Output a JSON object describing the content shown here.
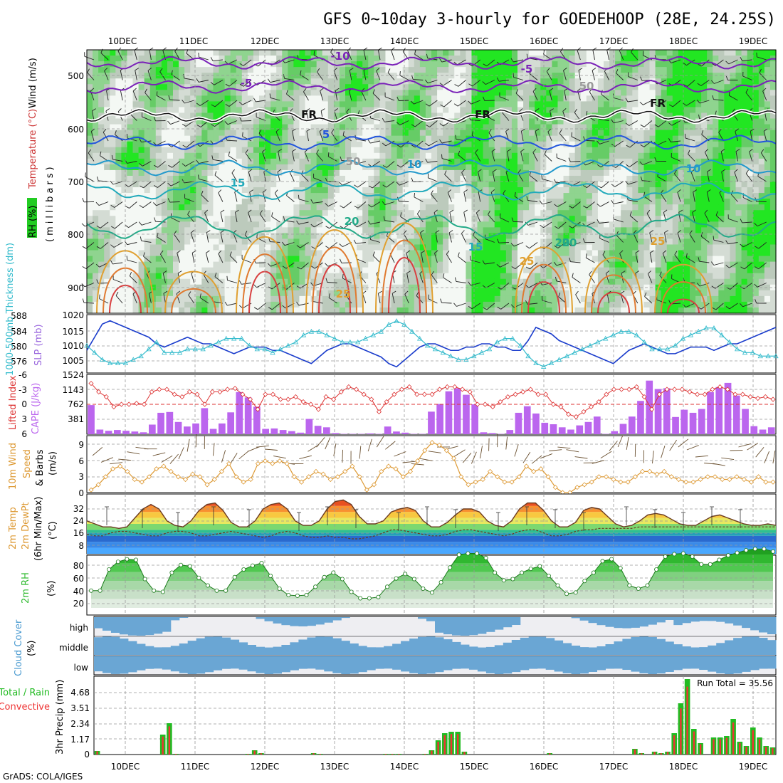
{
  "title": "GFS 0~10day 3-hourly for GOEDEHOOP (28E, 24.25S)",
  "footer": "GrADS: COLA/IGES",
  "dates": [
    "10DEC",
    "11DEC",
    "12DEC",
    "13DEC",
    "14DEC",
    "15DEC",
    "16DEC",
    "17DEC",
    "18DEC",
    "19DEC"
  ],
  "colors": {
    "precip_total": "#22bb22",
    "precip_conv": "#ee3333",
    "cape": "#bb66ee",
    "lifted": "#dd3333",
    "slp": "#1a3ccc",
    "thick": "#33bbcc",
    "wind": "#dd9933",
    "rh": "#33bb33",
    "cloud": "#6aa6d4"
  },
  "panels": {
    "upper": {
      "ylabel_rh": "RH (%)",
      "ylabel_temp": "Temperature (°C)",
      "ylabel_wind": "Wind (m/s)",
      "ylabel_units": "(millibars)",
      "levels": [
        "500",
        "600",
        "700",
        "800",
        "900"
      ],
      "contour_labels": [
        "-10",
        "-5",
        "-5",
        "FR",
        "FR",
        "FR",
        "5",
        "10",
        "10",
        "15",
        "15",
        "20",
        "20",
        "20",
        "25",
        "25",
        "25",
        "50",
        "50"
      ]
    },
    "slp_thick": {
      "ylabel_left": "1000-500mb Thickness (dm)",
      "ylabel_right": "SLP (mb)",
      "left_ticks": [
        "588",
        "584",
        "580",
        "576"
      ],
      "right_ticks": [
        "1020",
        "1015",
        "1010",
        "1005"
      ]
    },
    "cape_li": {
      "ylabel_left": "Lifted Index",
      "ylabel_right": "CAPE (J/kg)",
      "left_ticks": [
        "-6",
        "-3",
        "0",
        "3",
        "6"
      ],
      "right_ticks": [
        "1524",
        "1143",
        "762",
        "381"
      ]
    },
    "wind10": {
      "ylabel_1": "10m Wind",
      "ylabel_2": "Speed",
      "ylabel_3": "& Barbs",
      "ylabel_units": "(m/s)",
      "ticks": [
        "9",
        "6",
        "3",
        "0"
      ]
    },
    "temp2m": {
      "ylabel_1": "2m Temp",
      "ylabel_2": "2m DewPt",
      "ylabel_3": "(6hr Min/Max)",
      "ylabel_units": "(°C)",
      "ticks": [
        "32",
        "24",
        "16",
        "8"
      ]
    },
    "rh2m": {
      "ylabel": "2m RH",
      "ylabel_units": "(%)",
      "ticks": [
        "80",
        "60",
        "40",
        "20"
      ]
    },
    "cloud": {
      "ylabel": "Cloud Cover",
      "ylabel_units": "(%)",
      "rows": [
        "high",
        "middle",
        "low"
      ]
    },
    "precip": {
      "ylabel_1": "Total / Rain",
      "ylabel_2": "Convective",
      "ylabel_3": "3hr Precip (mm)",
      "ticks": [
        "4.68",
        "3.51",
        "2.34",
        "1.17",
        "0"
      ],
      "run_total_label": "Run Total = 35.56"
    }
  },
  "chart_data": [
    {
      "type": "line",
      "name": "SLP (mb)",
      "ylim": [
        1004,
        1020
      ],
      "values": [
        1010,
        1014,
        1018,
        1019,
        1018,
        1017,
        1016,
        1015,
        1014,
        1012,
        1011,
        1012,
        1013,
        1014,
        1013,
        1012,
        1012,
        1011,
        1010,
        1009,
        1010,
        1011,
        1011,
        1011,
        1010,
        1010,
        1009,
        1008,
        1007,
        1006,
        1008,
        1010,
        1011,
        1012,
        1012,
        1011,
        1010,
        1009,
        1008,
        1006,
        1005,
        1007,
        1009,
        1011,
        1012,
        1012,
        1011,
        1010,
        1010,
        1011,
        1011,
        1012,
        1012,
        1011,
        1011,
        1010,
        1010,
        1013,
        1017,
        1016,
        1015,
        1013,
        1012,
        1011,
        1010,
        1009,
        1008,
        1007,
        1006,
        1008,
        1010,
        1011,
        1012,
        1011,
        1010,
        1009,
        1009,
        1010,
        1011,
        1011,
        1011,
        1010,
        1011,
        1012,
        1012,
        1013,
        1014,
        1015,
        1016,
        1017
      ]
    },
    {
      "type": "line",
      "name": "1000-500mb Thickness (dm)",
      "ylim": [
        574,
        589
      ],
      "values": [
        581,
        579,
        577,
        576,
        576,
        576,
        577,
        578,
        580,
        582,
        579,
        579,
        579,
        580,
        580,
        580,
        581,
        582,
        583,
        583,
        583,
        581,
        580,
        580,
        579,
        580,
        581,
        582,
        584,
        585,
        585,
        584,
        583,
        582,
        582,
        582,
        583,
        584,
        585,
        587,
        588,
        587,
        585,
        583,
        581,
        580,
        579,
        578,
        577,
        577,
        578,
        579,
        580,
        582,
        583,
        583,
        581,
        578,
        576,
        575,
        576,
        577,
        578,
        579,
        580,
        581,
        582,
        583,
        584,
        585,
        585,
        584,
        582,
        580,
        580,
        580,
        581,
        583,
        584,
        585,
        586,
        586,
        584,
        582,
        580,
        579,
        579,
        578,
        578,
        578
      ]
    },
    {
      "type": "bar",
      "name": "CAPE (J/kg)",
      "ylim": [
        0,
        1524
      ],
      "values": [
        760,
        120,
        90,
        110,
        90,
        70,
        50,
        250,
        560,
        580,
        320,
        200,
        280,
        680,
        140,
        280,
        570,
        1100,
        960,
        720,
        140,
        150,
        110,
        80,
        40,
        400,
        220,
        180,
        30,
        10,
        10,
        10,
        20,
        10,
        200,
        70,
        40,
        10,
        10,
        590,
        790,
        1120,
        1200,
        1030,
        780,
        50,
        30,
        10,
        110,
        560,
        730,
        540,
        300,
        260,
        180,
        120,
        230,
        320,
        460,
        10,
        80,
        270,
        460,
        870,
        1400,
        1180,
        1200,
        450,
        640,
        560,
        660,
        1100,
        1230,
        1340,
        1010,
        660,
        210,
        120,
        180
      ]
    },
    {
      "type": "line",
      "name": "Lifted Index",
      "ylim": [
        -6,
        6
      ],
      "values": [
        -4.2,
        -2.5,
        -1.5,
        0.5,
        0,
        0,
        -0.2,
        0,
        -2.5,
        -3,
        -3,
        -2,
        -1.5,
        -2.5,
        -2,
        0,
        -2.5,
        -2.5,
        -3,
        -3.2,
        -2,
        -1,
        1,
        -2,
        -2,
        -1,
        -1,
        -1.5,
        -0.5,
        0,
        1,
        -1.5,
        -1,
        -2.5,
        -3.5,
        -3,
        -2,
        -1,
        1.5,
        -0.5,
        -2,
        -3,
        -3.5,
        -2,
        -2,
        -2,
        -3,
        -3.5,
        -3.5,
        -3,
        -2.5,
        0,
        0,
        0.5,
        -0.5,
        -1.5,
        -2,
        -2.5,
        -3,
        -2,
        -2,
        0,
        0.5,
        2,
        2.5,
        1.5,
        0.5,
        -0.5,
        -2,
        -3,
        -3,
        -3,
        -3.5,
        -1.5,
        1,
        -2,
        -3,
        -3,
        -3,
        -2.5,
        -2,
        -2,
        -3,
        -3.5,
        -3,
        -2,
        -2,
        -1.5,
        -1.2,
        -1.5,
        -1
      ]
    },
    {
      "type": "line",
      "name": "10m Wind Speed (m/s)",
      "ylim": [
        0,
        10
      ],
      "values": [
        0.5,
        1.5,
        3,
        4.5,
        5,
        4,
        2.5,
        2,
        3,
        4.5,
        5,
        4,
        3,
        2.5,
        3.5,
        3,
        1.5,
        2.5,
        4,
        5.5,
        3,
        2,
        2.5,
        5.5,
        6,
        5.5,
        6,
        5.5,
        3,
        2,
        3,
        4,
        3.5,
        2.5,
        3,
        4,
        5,
        3,
        0.5,
        1.5,
        4,
        5,
        4.5,
        3,
        4,
        6,
        8,
        9.5,
        9,
        8,
        6.5,
        3,
        1.5,
        2,
        2.5,
        4,
        3,
        2,
        2,
        3,
        5,
        4,
        4.5,
        3,
        1,
        0,
        0,
        1,
        1.5,
        2,
        3,
        3,
        2.5,
        2,
        2,
        3,
        4,
        4,
        3.5,
        4,
        3,
        2.5,
        2,
        2,
        2.5,
        3,
        3,
        2.5,
        2.5,
        3,
        2.5,
        2,
        3,
        2,
        2
      ]
    },
    {
      "type": "area",
      "name": "2m Temp (°C)",
      "ylim": [
        0,
        40
      ],
      "values": [
        22,
        20,
        18,
        18,
        17,
        18,
        24,
        30,
        33,
        30,
        22,
        19,
        18,
        22,
        29,
        33,
        34,
        29,
        21,
        18,
        18,
        22,
        30,
        33,
        34,
        30,
        22,
        19,
        19,
        22,
        30,
        35,
        36,
        33,
        25,
        20,
        20,
        22,
        28,
        30,
        31,
        29,
        22,
        18,
        18,
        21,
        26,
        30,
        30,
        28,
        22,
        19,
        18,
        22,
        30,
        34,
        34,
        29,
        22,
        18,
        18,
        21,
        29,
        31,
        30,
        25,
        20,
        18,
        19,
        22,
        26,
        27,
        26,
        23,
        20,
        19,
        19,
        22,
        25,
        26,
        24,
        22,
        20,
        19,
        19,
        20,
        19
      ]
    },
    {
      "type": "line",
      "name": "2m DewPt (°C)",
      "ylim": [
        0,
        40
      ],
      "values": [
        13,
        12,
        12,
        14,
        15,
        15,
        14,
        13,
        12,
        12,
        14,
        15,
        15,
        14,
        12,
        12,
        13,
        14,
        15,
        14,
        13,
        12,
        11,
        12,
        14,
        15,
        14,
        12,
        11,
        11,
        12,
        11,
        11,
        10,
        10,
        11,
        12,
        14,
        16,
        16,
        15,
        14,
        13,
        12,
        12,
        13,
        15,
        16,
        16,
        15,
        14,
        13,
        12,
        13,
        15,
        16,
        16,
        14,
        12,
        12,
        13,
        15,
        16,
        16,
        17,
        17,
        17,
        17,
        17,
        18,
        18,
        18,
        18,
        18,
        18,
        18,
        18,
        18,
        18,
        18,
        18,
        18,
        18,
        18,
        18,
        18,
        18
      ]
    },
    {
      "type": "area",
      "name": "2m RH (%)",
      "ylim": [
        0,
        100
      ],
      "values": [
        27,
        27,
        60,
        72,
        76,
        75,
        45,
        27,
        25,
        55,
        67,
        65,
        47,
        35,
        27,
        27,
        48,
        60,
        66,
        70,
        50,
        30,
        20,
        19,
        20,
        33,
        48,
        55,
        45,
        25,
        15,
        15,
        17,
        33,
        46,
        53,
        45,
        30,
        24,
        40,
        63,
        83,
        85,
        85,
        78,
        55,
        43,
        45,
        55,
        61,
        65,
        50,
        35,
        22,
        24,
        42,
        55,
        73,
        76,
        62,
        35,
        30,
        35,
        60,
        80,
        84,
        85,
        80,
        68,
        68,
        75,
        82,
        86,
        90,
        92,
        92,
        88
      ]
    },
    {
      "type": "bar",
      "name": "3hr Precip Total (mm)",
      "ylim": [
        0,
        5.5
      ],
      "values": [
        0.25,
        0,
        0,
        0,
        0,
        0,
        0,
        0,
        0,
        0,
        1.4,
        2.2,
        0.05,
        0,
        0,
        0,
        0,
        0,
        0,
        0,
        0,
        0,
        0,
        0.05,
        0.3,
        0.1,
        0,
        0,
        0,
        0,
        0,
        0,
        0,
        0.1,
        0.05,
        0,
        0,
        0,
        0,
        0,
        0,
        0,
        0,
        0,
        0.05,
        0.05,
        0.05,
        0,
        0,
        0,
        0.05,
        0.3,
        1.0,
        1.5,
        1.6,
        1.6,
        0.2,
        0,
        0,
        0,
        0,
        0,
        0,
        0,
        0,
        0,
        0,
        0,
        0,
        0.1,
        0,
        0,
        0,
        0,
        0,
        0,
        0,
        0,
        0,
        0,
        0,
        0,
        0.4,
        0.1,
        0,
        0.2,
        0.1,
        0.2,
        1.5,
        3.6,
        5.3,
        1.8,
        0.8,
        0,
        1.2,
        1.2,
        1.3,
        2.5,
        0.9,
        0.6,
        1.9,
        1.2,
        0.6,
        0.5
      ]
    },
    {
      "type": "heatmap",
      "name": "Cloud Cover (%)",
      "rows": [
        "high",
        "middle",
        "low"
      ],
      "values": "column-wise tri-level blocks (estimated)"
    }
  ]
}
